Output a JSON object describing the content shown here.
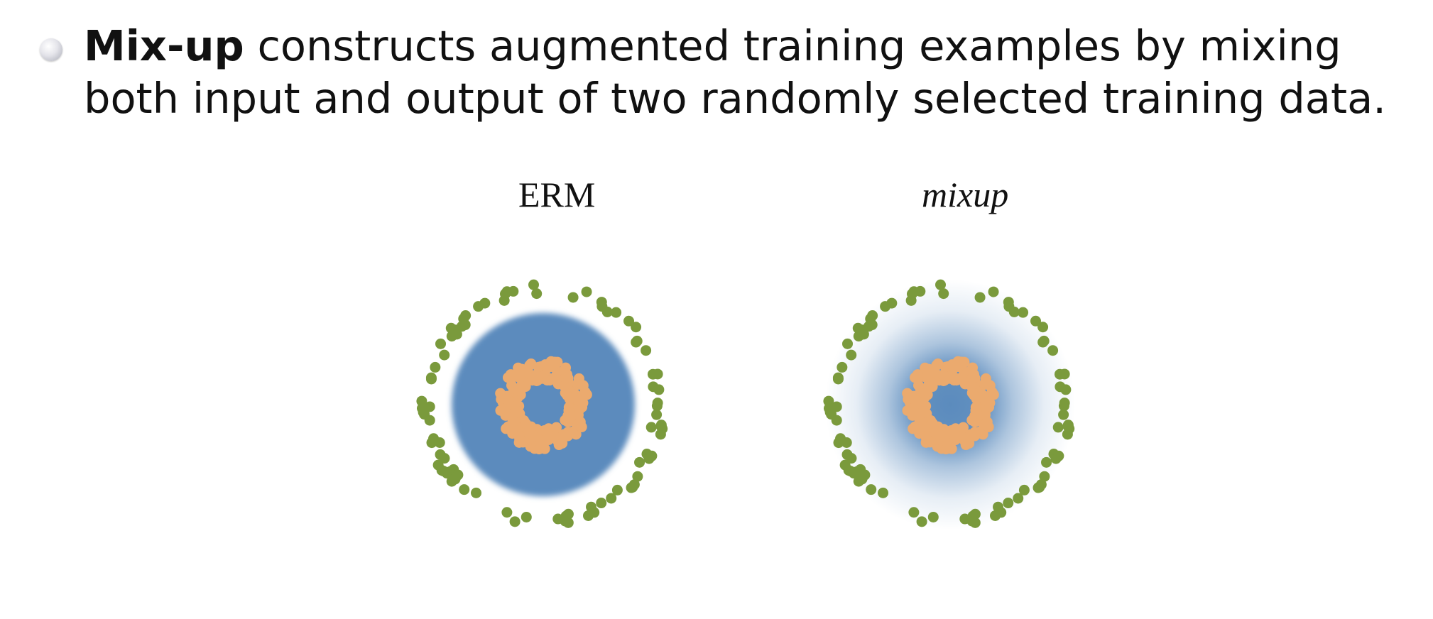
{
  "slide": {
    "bullet_bold": "Mix-up",
    "bullet_rest": " constructs augmented training examples by mixing both input and output of two randomly selected training data."
  },
  "colors": {
    "outer_class": "#7a9a3c",
    "inner_class": "#ebaa6e",
    "region": "#5b8bbd"
  },
  "chart_data": [
    {
      "type": "scatter",
      "title": "ERM",
      "decision_region": "sharp",
      "series": [
        {
          "class": "outer",
          "color": "#7a9a3c",
          "radius": 1.0,
          "count": 90
        },
        {
          "class": "inner",
          "color": "#ebaa6e",
          "radius": 0.3,
          "count": 220
        }
      ]
    },
    {
      "type": "scatter",
      "title": "mixup",
      "decision_region": "smooth",
      "series": [
        {
          "class": "outer",
          "color": "#7a9a3c",
          "radius": 1.0,
          "count": 90
        },
        {
          "class": "inner",
          "color": "#ebaa6e",
          "radius": 0.3,
          "count": 220
        }
      ]
    }
  ]
}
